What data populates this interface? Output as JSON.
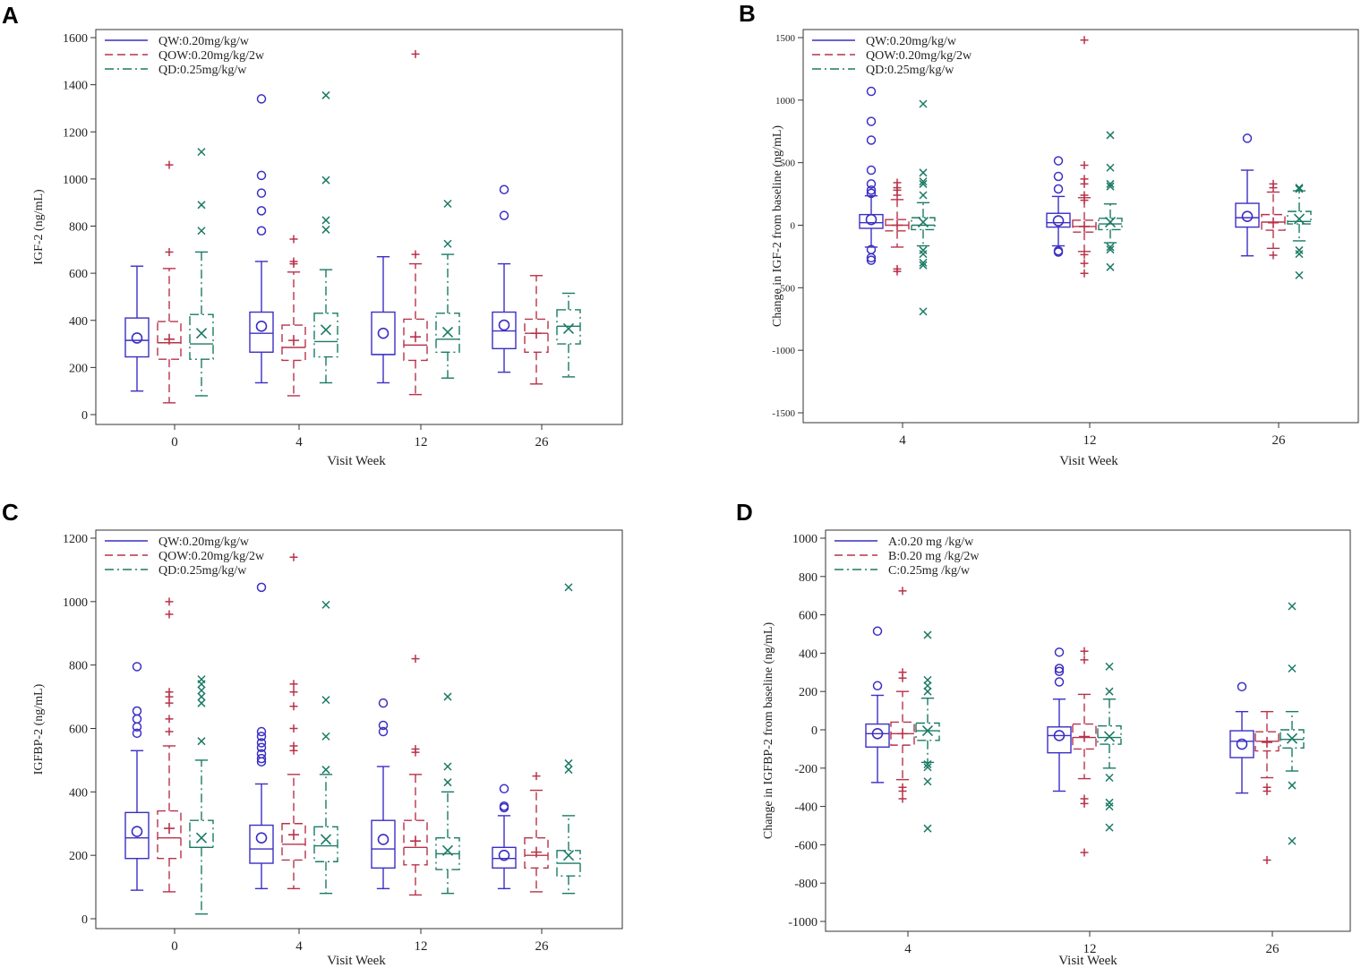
{
  "figure": {
    "panel_count": 4
  },
  "colors": {
    "qw": "#3b2fc4",
    "qow": "#b8324a",
    "qd": "#1a7a64"
  },
  "chart_data": [
    {
      "id": "A",
      "type": "box",
      "panel_label": "A",
      "ylabel": "IGF-2  (ng/mL)",
      "xlabel": "Visit Week",
      "categories": [
        "0",
        "4",
        "12",
        "26"
      ],
      "ylim": [
        0,
        1600
      ],
      "yticks": [
        0,
        200,
        400,
        600,
        800,
        1000,
        1200,
        1400,
        1600
      ],
      "legend": [
        "QW:0.20mg/kg/w",
        "QOW:0.20mg/kg/2w",
        "QD:0.25mg/kg/w"
      ],
      "series": [
        {
          "name": "QW:0.20mg/kg/w",
          "boxes": [
            {
              "min": 100,
              "q1": 245,
              "median": 315,
              "q3": 410,
              "max": 630,
              "mean": 325,
              "outliers": []
            },
            {
              "min": 135,
              "q1": 265,
              "median": 345,
              "q3": 435,
              "max": 650,
              "mean": 375,
              "outliers": [
                780,
                865,
                940,
                1015,
                1340
              ]
            },
            {
              "min": 135,
              "q1": 255,
              "median": 255,
              "q3": 435,
              "max": 670,
              "mean": 345,
              "outliers": []
            },
            {
              "min": 180,
              "q1": 280,
              "median": 355,
              "q3": 435,
              "max": 640,
              "mean": 380,
              "outliers": [
                845,
                955
              ]
            }
          ]
        },
        {
          "name": "QOW:0.20mg/kg/2w",
          "boxes": [
            {
              "min": 50,
              "q1": 235,
              "median": 305,
              "q3": 395,
              "max": 620,
              "mean": 320,
              "outliers": [
                690,
                1060
              ]
            },
            {
              "min": 80,
              "q1": 230,
              "median": 285,
              "q3": 380,
              "max": 605,
              "mean": 315,
              "outliers": [
                640,
                650,
                745
              ]
            },
            {
              "min": 85,
              "q1": 230,
              "median": 295,
              "q3": 405,
              "max": 640,
              "mean": 330,
              "outliers": [
                680,
                1530
              ]
            },
            {
              "min": 130,
              "q1": 265,
              "median": 345,
              "q3": 405,
              "max": 590,
              "mean": 345,
              "outliers": []
            }
          ]
        },
        {
          "name": "QD:0.25mg/kg/w",
          "boxes": [
            {
              "min": 80,
              "q1": 235,
              "median": 300,
              "q3": 425,
              "max": 690,
              "mean": 345,
              "outliers": [
                780,
                890,
                1115
              ]
            },
            {
              "min": 135,
              "q1": 245,
              "median": 310,
              "q3": 430,
              "max": 615,
              "mean": 360,
              "outliers": [
                785,
                825,
                995,
                1355
              ]
            },
            {
              "min": 155,
              "q1": 265,
              "median": 320,
              "q3": 430,
              "max": 680,
              "mean": 350,
              "outliers": [
                725,
                895
              ]
            },
            {
              "min": 160,
              "q1": 300,
              "median": 375,
              "q3": 445,
              "max": 515,
              "mean": 365,
              "outliers": []
            }
          ]
        }
      ]
    },
    {
      "id": "B",
      "type": "box",
      "panel_label": "B",
      "ylabel": "Change in IGF-2 from baseline (ng/mL)",
      "xlabel": "Visit Week",
      "categories": [
        "4",
        "12",
        "26"
      ],
      "ylim": [
        -1500,
        1500
      ],
      "yticks": [
        -1500,
        -1000,
        -500,
        0,
        500,
        1000,
        1500
      ],
      "legend": [
        "QW:0.20mg/kg/w",
        "QOW:0.20mg/kg/2w",
        "QD:0.25mg/kg/w"
      ],
      "series": [
        {
          "name": "QW:0.20mg/kg/w",
          "boxes": [
            {
              "min": -175,
              "q1": -25,
              "median": 20,
              "q3": 85,
              "max": 235,
              "mean": 45,
              "outliers": [
                -260,
                -280,
                -195,
                255,
                280,
                330,
                440,
                680,
                830,
                1070
              ]
            },
            {
              "min": -165,
              "q1": -15,
              "median": 20,
              "q3": 95,
              "max": 230,
              "mean": 35,
              "outliers": [
                -205,
                -215,
                290,
                390,
                515
              ]
            },
            {
              "min": -245,
              "q1": -15,
              "median": 60,
              "q3": 175,
              "max": 440,
              "mean": 70,
              "outliers": [
                695
              ]
            }
          ]
        },
        {
          "name": "QOW:0.20mg/kg/2w",
          "boxes": [
            {
              "min": -175,
              "q1": -45,
              "median": 0,
              "q3": 45,
              "max": 205,
              "mean": 0,
              "outliers": [
                -370,
                -350,
                240,
                280,
                300,
                340
              ]
            },
            {
              "min": -210,
              "q1": -55,
              "median": -10,
              "q3": 40,
              "max": 220,
              "mean": -10,
              "outliers": [
                -385,
                -305,
                -235,
                200,
                240,
                330,
                370,
                480,
                1480
              ]
            },
            {
              "min": -185,
              "q1": -40,
              "median": 25,
              "q3": 85,
              "max": 265,
              "mean": 20,
              "outliers": [
                -240,
                300,
                330
              ]
            }
          ]
        },
        {
          "name": "QD:0.25mg/kg/w",
          "boxes": [
            {
              "min": -165,
              "q1": -35,
              "median": 0,
              "q3": 60,
              "max": 180,
              "mean": 25,
              "outliers": [
                -690,
                -320,
                -300,
                -230,
                -200,
                240,
                330,
                350,
                420,
                970
              ]
            },
            {
              "min": -140,
              "q1": -35,
              "median": 10,
              "q3": 55,
              "max": 170,
              "mean": 25,
              "outliers": [
                -335,
                -195,
                -175,
                310,
                330,
                460,
                720
              ]
            },
            {
              "min": -125,
              "q1": 10,
              "median": 30,
              "q3": 110,
              "max": 275,
              "mean": 50,
              "outliers": [
                -400,
                -230,
                -200,
                290,
                300
              ]
            }
          ]
        }
      ]
    },
    {
      "id": "C",
      "type": "box",
      "panel_label": "C",
      "ylabel": "IGFBP-2 (ng/mL)",
      "xlabel": "Visit Week",
      "categories": [
        "0",
        "4",
        "12",
        "26"
      ],
      "ylim": [
        0,
        1200
      ],
      "yticks": [
        0,
        200,
        400,
        600,
        800,
        1000,
        1200
      ],
      "legend": [
        "QW:0.20mg/kg/w",
        "QOW:0.20mg/kg/2w",
        "QD:0.25mg/kg/w"
      ],
      "series": [
        {
          "name": "QW:0.20mg/kg/w",
          "boxes": [
            {
              "min": 90,
              "q1": 190,
              "median": 255,
              "q3": 335,
              "max": 530,
              "mean": 275,
              "outliers": [
                585,
                605,
                630,
                655,
                795
              ]
            },
            {
              "min": 95,
              "q1": 175,
              "median": 220,
              "q3": 295,
              "max": 425,
              "mean": 255,
              "outliers": [
                495,
                505,
                520,
                540,
                555,
                575,
                590,
                1045
              ]
            },
            {
              "min": 95,
              "q1": 160,
              "median": 220,
              "q3": 310,
              "max": 480,
              "mean": 250,
              "outliers": [
                590,
                610,
                680
              ]
            },
            {
              "min": 95,
              "q1": 160,
              "median": 190,
              "q3": 225,
              "max": 325,
              "mean": 200,
              "outliers": [
                350,
                355,
                410
              ]
            }
          ]
        },
        {
          "name": "QOW:0.20mg/kg/2w",
          "boxes": [
            {
              "min": 85,
              "q1": 190,
              "median": 255,
              "q3": 340,
              "max": 545,
              "mean": 285,
              "outliers": [
                590,
                630,
                680,
                700,
                715,
                960,
                1000
              ]
            },
            {
              "min": 95,
              "q1": 185,
              "median": 235,
              "q3": 300,
              "max": 455,
              "mean": 265,
              "outliers": [
                530,
                545,
                600,
                670,
                715,
                740,
                1140
              ]
            },
            {
              "min": 75,
              "q1": 170,
              "median": 225,
              "q3": 310,
              "max": 455,
              "mean": 245,
              "outliers": [
                525,
                535,
                820
              ]
            },
            {
              "min": 85,
              "q1": 160,
              "median": 200,
              "q3": 255,
              "max": 405,
              "mean": 210,
              "outliers": [
                450
              ]
            }
          ]
        },
        {
          "name": "QD:0.25mg/kg/w",
          "boxes": [
            {
              "min": 15,
              "q1": 225,
              "median": 225,
              "q3": 310,
              "max": 500,
              "mean": 255,
              "outliers": [
                560,
                680,
                700,
                720,
                740,
                755
              ]
            },
            {
              "min": 80,
              "q1": 180,
              "median": 230,
              "q3": 290,
              "max": 455,
              "mean": 250,
              "outliers": [
                470,
                575,
                690,
                990
              ]
            },
            {
              "min": 80,
              "q1": 155,
              "median": 205,
              "q3": 255,
              "max": 400,
              "mean": 215,
              "outliers": [
                430,
                480,
                700
              ]
            },
            {
              "min": 80,
              "q1": 135,
              "median": 175,
              "q3": 215,
              "max": 325,
              "mean": 200,
              "outliers": [
                470,
                490,
                1045
              ]
            }
          ]
        }
      ]
    },
    {
      "id": "D",
      "type": "box",
      "panel_label": "D",
      "ylabel": "Change in IGFBP-2 from baseline (ng/mL)",
      "xlabel": "Visit Week",
      "categories": [
        "4",
        "12",
        "26"
      ],
      "ylim": [
        -1000,
        1000
      ],
      "yticks": [
        -1000,
        -800,
        -600,
        -400,
        -200,
        0,
        200,
        400,
        600,
        800,
        1000
      ],
      "legend": [
        "A:0.20 mg /kg/w",
        "B:0.20 mg /kg/2w",
        "C:0.25mg /kg/w"
      ],
      "series": [
        {
          "name": "A:0.20 mg /kg/w",
          "boxes": [
            {
              "min": -275,
              "q1": -90,
              "median": -20,
              "q3": 30,
              "max": 180,
              "mean": -20,
              "outliers": [
                230,
                515
              ]
            },
            {
              "min": -320,
              "q1": -120,
              "median": -30,
              "q3": 15,
              "max": 160,
              "mean": -30,
              "outliers": [
                250,
                305,
                320,
                405
              ]
            },
            {
              "min": -330,
              "q1": -145,
              "median": -60,
              "q3": -5,
              "max": 95,
              "mean": -75,
              "outliers": [
                225
              ]
            }
          ]
        },
        {
          "name": "B:0.20 mg /kg/2w",
          "boxes": [
            {
              "min": -260,
              "q1": -80,
              "median": -20,
              "q3": 40,
              "max": 200,
              "mean": -20,
              "outliers": [
                -360,
                -320,
                -300,
                270,
                300,
                725
              ]
            },
            {
              "min": -255,
              "q1": -100,
              "median": -40,
              "q3": 30,
              "max": 185,
              "mean": -35,
              "outliers": [
                -640,
                -385,
                -360,
                365,
                410
              ]
            },
            {
              "min": -250,
              "q1": -110,
              "median": -60,
              "q3": -10,
              "max": 95,
              "mean": -65,
              "outliers": [
                -680,
                -320,
                -300
              ]
            }
          ]
        },
        {
          "name": "C:0.25mg /kg/w",
          "boxes": [
            {
              "min": -170,
              "q1": -55,
              "median": -5,
              "q3": 35,
              "max": 165,
              "mean": -5,
              "outliers": [
                -515,
                -270,
                -195,
                -180,
                200,
                230,
                260,
                495
              ]
            },
            {
              "min": -200,
              "q1": -75,
              "median": -40,
              "q3": 20,
              "max": 160,
              "mean": -35,
              "outliers": [
                -510,
                -400,
                -380,
                -250,
                200,
                330
              ]
            },
            {
              "min": -215,
              "q1": -95,
              "median": -50,
              "q3": 0,
              "max": 95,
              "mean": -45,
              "outliers": [
                -580,
                -290,
                320,
                645
              ]
            }
          ]
        }
      ]
    }
  ]
}
